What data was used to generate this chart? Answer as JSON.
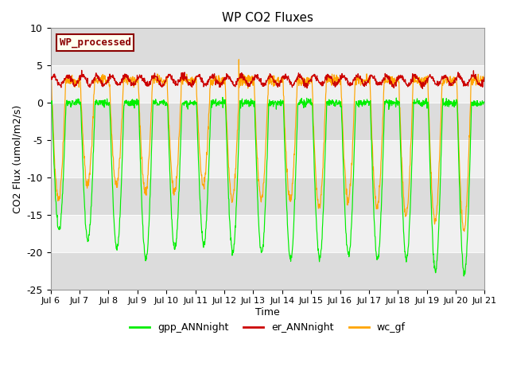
{
  "title": "WP CO2 Fluxes",
  "ylabel": "CO2 Flux (umol/m2/s)",
  "xlabel": "Time",
  "ylim": [
    -25,
    10
  ],
  "annotation_text": "WP_processed",
  "annotation_color": "#8B0000",
  "annotation_bg": "#FFFFF0",
  "annotation_border": "#8B0000",
  "gpp_color": "#00EE00",
  "er_color": "#CC0000",
  "wc_color": "#FFA500",
  "bg_light": "#F0F0F0",
  "bg_dark": "#DCDCDC",
  "x_tick_labels": [
    "Jul 6",
    "Jul 7",
    "Jul 8",
    "Jul 9",
    "Jul 10",
    "Jul 11",
    "Jul 12",
    "Jul 13",
    "Jul 14",
    "Jul 15",
    "Jul 16",
    "Jul 17",
    "Jul 18",
    "Jul 19",
    "Jul 20",
    "Jul 21"
  ],
  "legend_labels": [
    "gpp_ANNnight",
    "er_ANNnight",
    "wc_gf"
  ],
  "legend_colors": [
    "#00EE00",
    "#CC0000",
    "#FFA500"
  ],
  "n_days": 15,
  "points_per_day": 96,
  "yticks": [
    -25,
    -20,
    -15,
    -10,
    -5,
    0,
    5,
    10
  ],
  "band_edges": [
    -25,
    -20,
    -15,
    -10,
    -5,
    0,
    5,
    10
  ],
  "figsize": [
    6.4,
    4.8
  ],
  "dpi": 100
}
